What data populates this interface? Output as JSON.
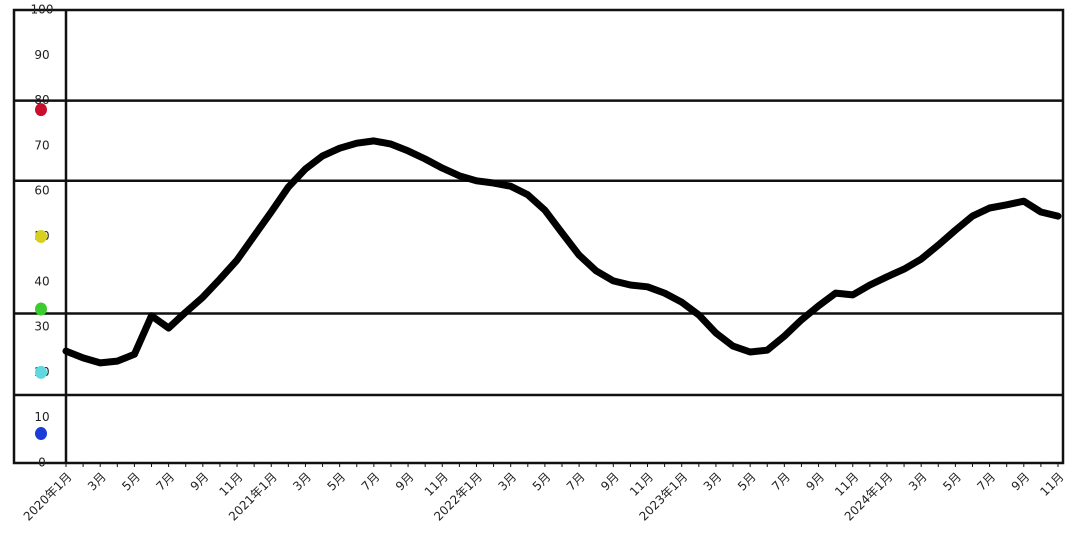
{
  "chart_data": {
    "type": "line",
    "categories": [
      "2020年1月",
      null,
      "3月",
      null,
      "5月",
      null,
      "7月",
      null,
      "9月",
      null,
      "11月",
      null,
      "2021年1月",
      null,
      "3月",
      null,
      "5月",
      null,
      "7月",
      null,
      "9月",
      null,
      "11月",
      null,
      "2022年1月",
      null,
      "3月",
      null,
      "5月",
      null,
      "7月",
      null,
      "9月",
      null,
      "11月",
      null,
      "2023年1月",
      null,
      "3月",
      null,
      "5月",
      null,
      "7月",
      null,
      "9月",
      null,
      "11月",
      null,
      "2024年1月",
      null,
      "3月",
      null,
      "5月",
      null,
      "7月",
      null,
      "9月",
      null,
      "11月"
    ],
    "series": [
      {
        "color": "#000000",
        "values": [
          24.7,
          23.2,
          22.1,
          22.5,
          24,
          32.5,
          29.8,
          33.3,
          36.6,
          40.6,
          44.8,
          50.1,
          55.4,
          60.9,
          64.9,
          67.8,
          69.5,
          70.6,
          71.1,
          70.4,
          68.9,
          67.1,
          65.1,
          63.4,
          62.3,
          61.8,
          61.1,
          59.2,
          55.8,
          50.8,
          45.9,
          42.4,
          40.2,
          39.3,
          38.9,
          37.5,
          35.5,
          32.7,
          28.7,
          25.8,
          24.5,
          24.9,
          28,
          31.6,
          34.7,
          37.5,
          37.1,
          39.3,
          41.1,
          42.8,
          45,
          48.1,
          51.4,
          54.5,
          56.3,
          57,
          57.8,
          55.4,
          54.5
        ]
      }
    ],
    "ylim": [
      0,
      100
    ],
    "yticks": [
      0,
      10,
      20,
      30,
      40,
      50,
      60,
      70,
      80,
      90,
      100
    ],
    "reference_lines": [
      80,
      62.3,
      33,
      15
    ],
    "zone_dots": [
      {
        "color": "#c8102e",
        "value": 78
      },
      {
        "color": "#d8d020",
        "value": 50
      },
      {
        "color": "#3ccc30",
        "value": 34
      },
      {
        "color": "#60d8e0",
        "value": 20
      },
      {
        "color": "#1a3cd8",
        "value": 6.5
      }
    ]
  }
}
